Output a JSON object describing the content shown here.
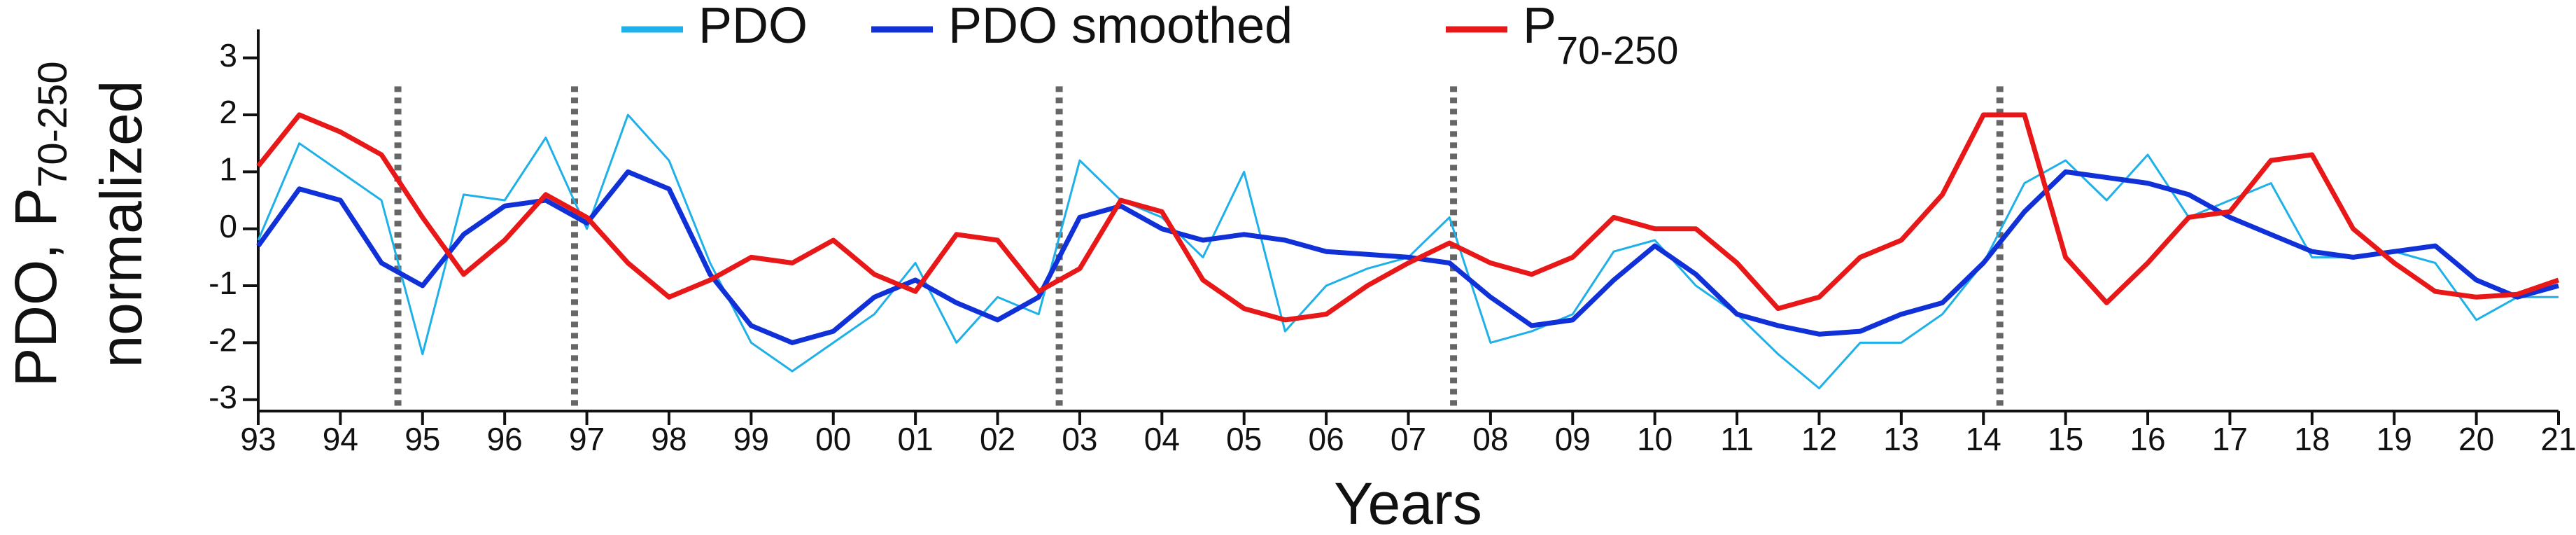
{
  "chart_data": {
    "type": "line",
    "xlabel": "Years",
    "ylabel": {
      "text": "PDO, P",
      "subscript": "70-250",
      "line2": "normalized"
    },
    "x": [
      1993,
      1993.5,
      1994,
      1994.5,
      1995,
      1995.5,
      1996,
      1996.5,
      1997,
      1997.5,
      1998,
      1998.5,
      1999,
      1999.5,
      2000,
      2000.5,
      2001,
      2001.5,
      2002,
      2002.5,
      2003,
      2003.5,
      2004,
      2004.5,
      2005,
      2005.5,
      2006,
      2006.5,
      2007,
      2007.5,
      2008,
      2008.5,
      2009,
      2009.5,
      2010,
      2010.5,
      2011,
      2011.5,
      2012,
      2012.5,
      2013,
      2013.5,
      2014,
      2014.5,
      2015,
      2015.5,
      2016,
      2016.5,
      2017,
      2017.5,
      2018,
      2018.5,
      2019,
      2019.5,
      2020,
      2020.5,
      2021
    ],
    "series": [
      {
        "name": "PDO",
        "color": "#1eb0e8",
        "width": 3,
        "values": [
          -0.2,
          1.5,
          1.0,
          0.5,
          -2.2,
          0.6,
          0.5,
          1.6,
          0.0,
          2.0,
          1.2,
          -0.6,
          -2.0,
          -2.5,
          -2.0,
          -1.5,
          -0.6,
          -2.0,
          -1.2,
          -1.5,
          1.2,
          0.5,
          0.2,
          -0.5,
          1.0,
          -1.8,
          -1.0,
          -0.7,
          -0.5,
          0.2,
          -2.0,
          -1.8,
          -1.5,
          -0.4,
          -0.2,
          -1.0,
          -1.5,
          -2.2,
          -2.8,
          -2.0,
          -2.0,
          -1.5,
          -0.6,
          0.8,
          1.2,
          0.5,
          1.3,
          0.2,
          0.5,
          0.8,
          -0.5,
          -0.5,
          -0.4,
          -0.6,
          -1.6,
          -1.2,
          -1.2
        ]
      },
      {
        "name": "PDO smoothed",
        "color": "#1030d8",
        "width": 7,
        "values": [
          -0.3,
          0.7,
          0.5,
          -0.6,
          -1.0,
          -0.1,
          0.4,
          0.5,
          0.1,
          1.0,
          0.7,
          -0.8,
          -1.7,
          -2.0,
          -1.8,
          -1.2,
          -0.9,
          -1.3,
          -1.6,
          -1.2,
          0.2,
          0.4,
          0.0,
          -0.2,
          -0.1,
          -0.2,
          -0.4,
          -0.45,
          -0.5,
          -0.6,
          -1.2,
          -1.7,
          -1.6,
          -0.9,
          -0.3,
          -0.8,
          -1.5,
          -1.7,
          -1.85,
          -1.8,
          -1.5,
          -1.3,
          -0.6,
          0.3,
          1.0,
          0.9,
          0.8,
          0.6,
          0.2,
          -0.1,
          -0.4,
          -0.5,
          -0.4,
          -0.3,
          -0.9,
          -1.2,
          -1.0
        ]
      },
      {
        "name": "P",
        "name_subscript": "70-250",
        "color": "#e81818",
        "width": 7,
        "values": [
          1.1,
          2.0,
          1.7,
          1.3,
          0.2,
          -0.8,
          -0.2,
          0.6,
          0.2,
          -0.6,
          -1.2,
          -0.9,
          -0.5,
          -0.6,
          -0.2,
          -0.8,
          -1.1,
          -0.1,
          -0.2,
          -1.1,
          -0.7,
          0.5,
          0.3,
          -0.9,
          -1.4,
          -1.6,
          -1.5,
          -1.0,
          -0.6,
          -0.25,
          -0.6,
          -0.8,
          -0.5,
          0.2,
          0.0,
          0.0,
          -0.6,
          -1.4,
          -1.2,
          -0.5,
          -0.2,
          0.6,
          2.0,
          2.0,
          -0.5,
          -1.3,
          -0.6,
          0.2,
          0.3,
          1.2,
          1.3,
          0.0,
          -0.6,
          -1.1,
          -1.2,
          -1.15,
          -0.9
        ]
      }
    ],
    "vlines": [
      1994.7,
      1996.85,
      2002.75,
      2007.55,
      2014.2
    ],
    "vline_color": "#666666",
    "xlim": [
      1993,
      2021
    ],
    "xticks": [
      {
        "value": 1993,
        "label": "93"
      },
      {
        "value": 1994,
        "label": "94"
      },
      {
        "value": 1995,
        "label": "95"
      },
      {
        "value": 1996,
        "label": "96"
      },
      {
        "value": 1997,
        "label": "97"
      },
      {
        "value": 1998,
        "label": "98"
      },
      {
        "value": 1999,
        "label": "99"
      },
      {
        "value": 2000,
        "label": "00"
      },
      {
        "value": 2001,
        "label": "01"
      },
      {
        "value": 2002,
        "label": "02"
      },
      {
        "value": 2003,
        "label": "03"
      },
      {
        "value": 2004,
        "label": "04"
      },
      {
        "value": 2005,
        "label": "05"
      },
      {
        "value": 2006,
        "label": "06"
      },
      {
        "value": 2007,
        "label": "07"
      },
      {
        "value": 2008,
        "label": "08"
      },
      {
        "value": 2009,
        "label": "09"
      },
      {
        "value": 2010,
        "label": "10"
      },
      {
        "value": 2011,
        "label": "11"
      },
      {
        "value": 2012,
        "label": "12"
      },
      {
        "value": 2013,
        "label": "13"
      },
      {
        "value": 2014,
        "label": "14"
      },
      {
        "value": 2015,
        "label": "15"
      },
      {
        "value": 2016,
        "label": "16"
      },
      {
        "value": 2017,
        "label": "17"
      },
      {
        "value": 2018,
        "label": "18"
      },
      {
        "value": 2019,
        "label": "19"
      },
      {
        "value": 2020,
        "label": "20"
      },
      {
        "value": 2021,
        "label": "21"
      }
    ],
    "ylim": [
      -3.2,
      3.5
    ],
    "yticks": [
      -3,
      -2,
      -1,
      0,
      1,
      2,
      3
    ],
    "grid": false
  }
}
